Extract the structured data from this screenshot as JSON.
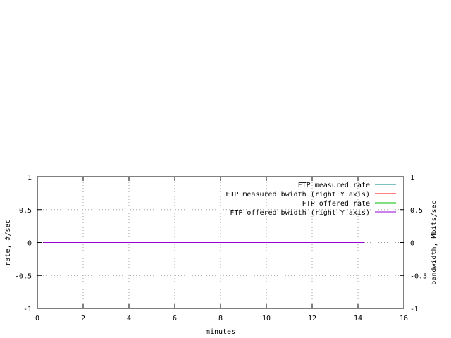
{
  "chart_data": {
    "type": "line",
    "title": "",
    "xlabel": "minutes",
    "ylabel": "rate, #/sec",
    "y2label": "bandwidth, Mbits/sec",
    "xlim": [
      0,
      16
    ],
    "ylim": [
      -1,
      1
    ],
    "y2lim": [
      -1,
      1
    ],
    "xticks": [
      "0",
      "2",
      "4",
      "6",
      "8",
      "10",
      "12",
      "14",
      "16"
    ],
    "yticks": [
      "-1",
      "-0.5",
      "0",
      "0.5",
      "1"
    ],
    "y2ticks": [
      "-1",
      "-0.5",
      "0",
      "0.5",
      "1"
    ],
    "grid": true,
    "legend_position": "top-right",
    "series": [
      {
        "name": "FTP measured rate",
        "color": "#008080",
        "x": [
          0.25,
          14.25
        ],
        "y": [
          0,
          0
        ]
      },
      {
        "name": "FTP measured bwidth (right Y axis)",
        "color": "#ff0000",
        "x": [
          0.25,
          14.25
        ],
        "y": [
          0,
          0
        ]
      },
      {
        "name": "FTP offered rate",
        "color": "#00c000",
        "x": [
          0.25,
          14.25
        ],
        "y": [
          0,
          0
        ]
      },
      {
        "name": "FTP offered bwidth (right Y axis)",
        "color": "#9400d3",
        "x": [
          0.25,
          14.25
        ],
        "y": [
          0,
          0
        ]
      }
    ]
  }
}
